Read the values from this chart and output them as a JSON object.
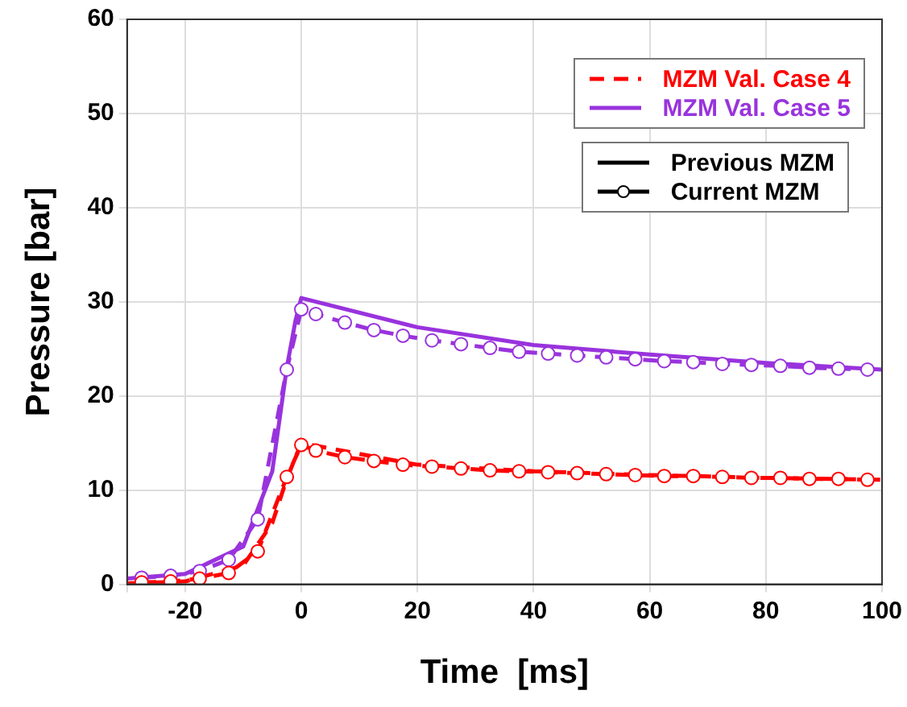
{
  "chart_data": {
    "type": "line",
    "xlabel": "Time  [ms]",
    "ylabel": "Pressure [bar]",
    "xlim": [
      -30,
      100
    ],
    "xticks": [
      {
        "value": -30,
        "label": null
      },
      -20,
      0,
      20,
      40,
      60,
      80,
      100
    ],
    "ylim": [
      0,
      60
    ],
    "yticks": [
      0,
      10,
      20,
      30,
      40,
      50,
      60
    ],
    "grid": true,
    "legend": "top right",
    "annotations": [
      "Previous MZM",
      "Current MZM"
    ],
    "series": [
      {
        "name": "MZM Val. Case 4",
        "color": "#ff0000",
        "line_style": "dashed",
        "marker": "none",
        "x": [
          -30,
          -20,
          -10,
          -5,
          -2.5,
          0,
          20,
          40,
          60,
          80,
          100
        ],
        "values": [
          0.1,
          0.3,
          2,
          6.5,
          11.2,
          15,
          12.7,
          12,
          11.6,
          11.3,
          11.1
        ]
      },
      {
        "color": "#ff0000",
        "line_style": "dashed",
        "marker": "circle",
        "x": [
          -27.5,
          -22.5,
          -17.5,
          -12.5,
          -7.5,
          -2.5,
          0,
          2.5,
          7.5,
          12.5,
          17.5,
          22.5,
          27.5,
          32.5,
          37.5,
          42.5,
          47.5,
          52.5,
          57.5,
          62.5,
          67.5,
          72.5,
          77.5,
          82.5,
          87.5,
          92.5,
          97.5
        ],
        "values": [
          0.2,
          0.3,
          0.6,
          1.2,
          3.5,
          11.4,
          14.8,
          14.2,
          13.5,
          13.1,
          12.7,
          12.5,
          12.3,
          12.1,
          12,
          11.9,
          11.8,
          11.7,
          11.6,
          11.5,
          11.5,
          11.4,
          11.3,
          11.3,
          11.2,
          11.2,
          11.1
        ]
      },
      {
        "name": "MZM Val. Case 5",
        "color": "#9933dd",
        "line_style": "solid",
        "marker": "none",
        "x": [
          -30,
          -20,
          -10,
          -5,
          -2.5,
          -1,
          0,
          20,
          40,
          60,
          80,
          100
        ],
        "values": [
          0.6,
          1.1,
          4,
          12,
          23,
          28,
          30.4,
          27.3,
          25.4,
          24.4,
          23.5,
          22.8
        ]
      },
      {
        "color": "#9933dd",
        "line_style": "dashed",
        "marker": "circle",
        "x": [
          -27.5,
          -22.5,
          -17.5,
          -12.5,
          -7.5,
          -2.5,
          0,
          2.5,
          7.5,
          12.5,
          17.5,
          22.5,
          27.5,
          32.5,
          37.5,
          42.5,
          47.5,
          52.5,
          57.5,
          62.5,
          67.5,
          72.5,
          77.5,
          82.5,
          87.5,
          92.5,
          97.5
        ],
        "values": [
          0.7,
          0.9,
          1.4,
          2.6,
          6.9,
          22.8,
          29.2,
          28.7,
          27.8,
          27,
          26.4,
          25.9,
          25.5,
          25.1,
          24.7,
          24.5,
          24.3,
          24.1,
          23.9,
          23.7,
          23.6,
          23.4,
          23.3,
          23.2,
          23,
          22.9,
          22.8
        ]
      }
    ]
  }
}
